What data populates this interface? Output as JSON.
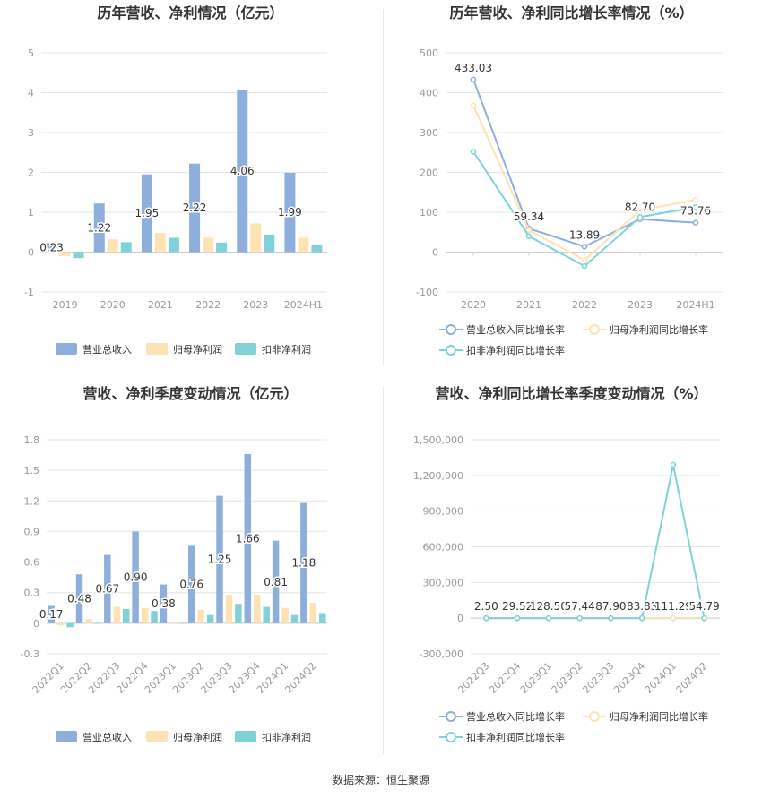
{
  "colors": {
    "revenue": "#8eaedc",
    "net_profit": "#fde2b4",
    "deducted": "#7fd3d8",
    "grid": "#e6e6e6",
    "axis_text": "#999999",
    "title": "#333333"
  },
  "legend_labels": {
    "bar": [
      "营业总收入",
      "归母净利润",
      "扣非净利润"
    ],
    "line": [
      "营业总收入同比增长率",
      "归母净利润同比增长率",
      "扣非净利润同比增长率"
    ]
  },
  "source": "数据来源：恒生聚源",
  "chart_data": [
    {
      "id": "annual-bar",
      "type": "bar",
      "title": "历年营收、净利情况（亿元）",
      "categories": [
        "2019",
        "2020",
        "2021",
        "2022",
        "2023",
        "2024H1"
      ],
      "ylim": [
        -1,
        5
      ],
      "yticks": [
        -1,
        0,
        1,
        2,
        3,
        4,
        5
      ],
      "series": [
        {
          "name": "营业总收入",
          "values": [
            0.23,
            1.22,
            1.95,
            2.22,
            4.06,
            1.99
          ]
        },
        {
          "name": "归母净利润",
          "values": [
            -0.1,
            0.32,
            0.48,
            0.36,
            0.72,
            0.36
          ]
        },
        {
          "name": "扣非净利润",
          "values": [
            -0.15,
            0.25,
            0.36,
            0.24,
            0.44,
            0.18
          ]
        }
      ],
      "data_labels": [
        "0.23",
        "1.22",
        "1.95",
        "2.22",
        "4.06",
        "1.99"
      ],
      "legend": "bottom",
      "grid": true
    },
    {
      "id": "annual-line",
      "type": "line",
      "title": "历年营收、净利同比增长率情况（%）",
      "categories": [
        "2020",
        "2021",
        "2022",
        "2023",
        "2024H1"
      ],
      "ylim": [
        -100,
        500
      ],
      "yticks": [
        -100,
        0,
        100,
        200,
        300,
        400,
        500
      ],
      "series": [
        {
          "name": "营业总收入同比增长率",
          "values": [
            433.03,
            59.34,
            13.89,
            82.7,
            73.76
          ]
        },
        {
          "name": "归母净利润同比增长率",
          "values": [
            368,
            55,
            -20,
            105,
            131
          ]
        },
        {
          "name": "扣非净利润同比增长率",
          "values": [
            252,
            40,
            -35,
            88,
            113
          ]
        }
      ],
      "data_labels": [
        "433.03",
        "59.34",
        "13.89",
        "82.70",
        "73.76"
      ],
      "legend": "bottom",
      "grid": true
    },
    {
      "id": "quarter-bar",
      "type": "bar",
      "title": "营收、净利季度变动情况（亿元）",
      "categories": [
        "2022Q1",
        "2022Q2",
        "2022Q3",
        "2022Q4",
        "2023Q1",
        "2023Q2",
        "2023Q3",
        "2023Q4",
        "2024Q1",
        "2024Q2"
      ],
      "ylim": [
        -0.3,
        1.8
      ],
      "yticks": [
        -0.3,
        0,
        0.3,
        0.6,
        0.9,
        1.2,
        1.5,
        1.8
      ],
      "ytick_labels": [
        "-0.3",
        "0",
        "0.3",
        "0.6",
        "0.9",
        "1.2",
        "1.5",
        "1.8"
      ],
      "series": [
        {
          "name": "营业总收入",
          "values": [
            0.17,
            0.48,
            0.67,
            0.9,
            0.38,
            0.76,
            1.25,
            1.66,
            0.81,
            1.18
          ]
        },
        {
          "name": "归母净利润",
          "values": [
            -0.02,
            0.04,
            0.16,
            0.15,
            0.01,
            0.13,
            0.28,
            0.28,
            0.15,
            0.2
          ]
        },
        {
          "name": "扣非净利润",
          "values": [
            -0.04,
            0.0,
            0.14,
            0.12,
            0.0,
            0.08,
            0.19,
            0.16,
            0.08,
            0.1
          ]
        }
      ],
      "data_labels": [
        "0.17",
        "0.48",
        "0.67",
        "0.90",
        "0.38",
        "0.76",
        "1.25",
        "1.66",
        "0.81",
        "1.18"
      ],
      "legend": "bottom",
      "grid": true
    },
    {
      "id": "quarter-line",
      "type": "line",
      "title": "营收、净利同比增长率季度变动情况（%）",
      "categories": [
        "2022Q3",
        "2022Q4",
        "2023Q1",
        "2023Q2",
        "2023Q3",
        "2023Q4",
        "2024Q1",
        "2024Q2"
      ],
      "ylim": [
        -300000,
        1500000
      ],
      "yticks": [
        -300000,
        0,
        300000,
        600000,
        900000,
        1200000,
        1500000
      ],
      "ytick_labels": [
        "-300,000",
        "0",
        "300,000",
        "600,000",
        "900,000",
        "1,200,000",
        "1,500,000"
      ],
      "series": [
        {
          "name": "营业总收入同比增长率",
          "values": [
            2.5,
            29.52,
            128.5,
            57.44,
            87.9,
            83.83,
            111.29,
            54.79
          ]
        },
        {
          "name": "归母净利润同比增长率",
          "values": [
            10,
            40,
            150,
            60,
            95,
            80,
            120,
            50
          ]
        },
        {
          "name": "扣非净利润同比增长率",
          "values": [
            5,
            30,
            100,
            50,
            90,
            90,
            1290000,
            60
          ]
        }
      ],
      "data_labels": [
        "2.50",
        "29.52",
        "128.50",
        "57.44",
        "87.90",
        "83.83",
        "111.29",
        "54.79"
      ],
      "legend": "bottom",
      "grid": true
    }
  ]
}
